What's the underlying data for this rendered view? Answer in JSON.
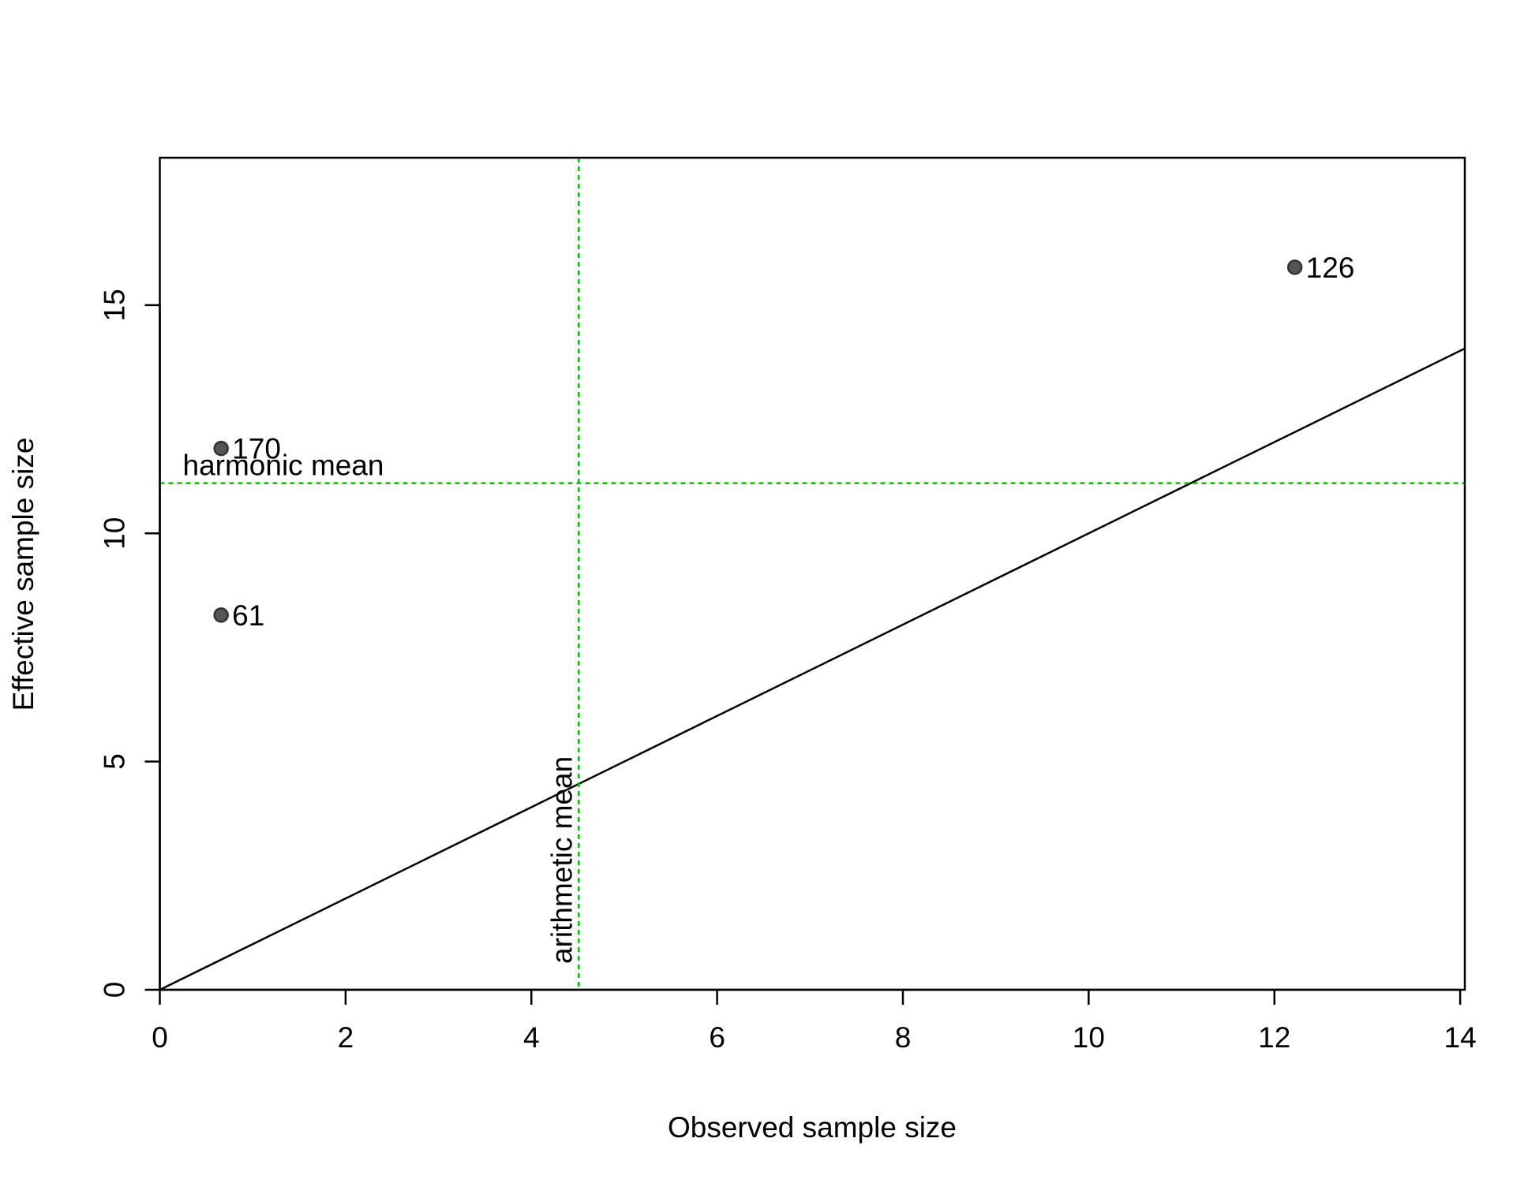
{
  "chart_data": {
    "type": "scatter",
    "x_label": "Observed sample size",
    "y_label": "Effective sample size",
    "series": [
      {
        "color": "#555555",
        "x": [
          0.66,
          0.66,
          12.22
        ],
        "values": [
          11.86,
          8.21,
          15.83
        ],
        "point_labels": [
          "170",
          "61",
          "126"
        ]
      }
    ],
    "abline": {
      "intercept": 0,
      "slope": 1,
      "color": "#000000"
    },
    "hlines": [
      {
        "value": 11.1,
        "label": "harmonic mean",
        "color": "#00c000"
      }
    ],
    "vlines": [
      {
        "value": 4.51,
        "label": "arithmetic mean",
        "color": "#00c000"
      }
    ],
    "xlim": [
      0,
      14.05
    ],
    "ylim": [
      0,
      18.23
    ],
    "xticks": [
      0,
      2,
      4,
      6,
      8,
      10,
      12,
      14
    ],
    "yticks": [
      0,
      5,
      10,
      15
    ]
  }
}
